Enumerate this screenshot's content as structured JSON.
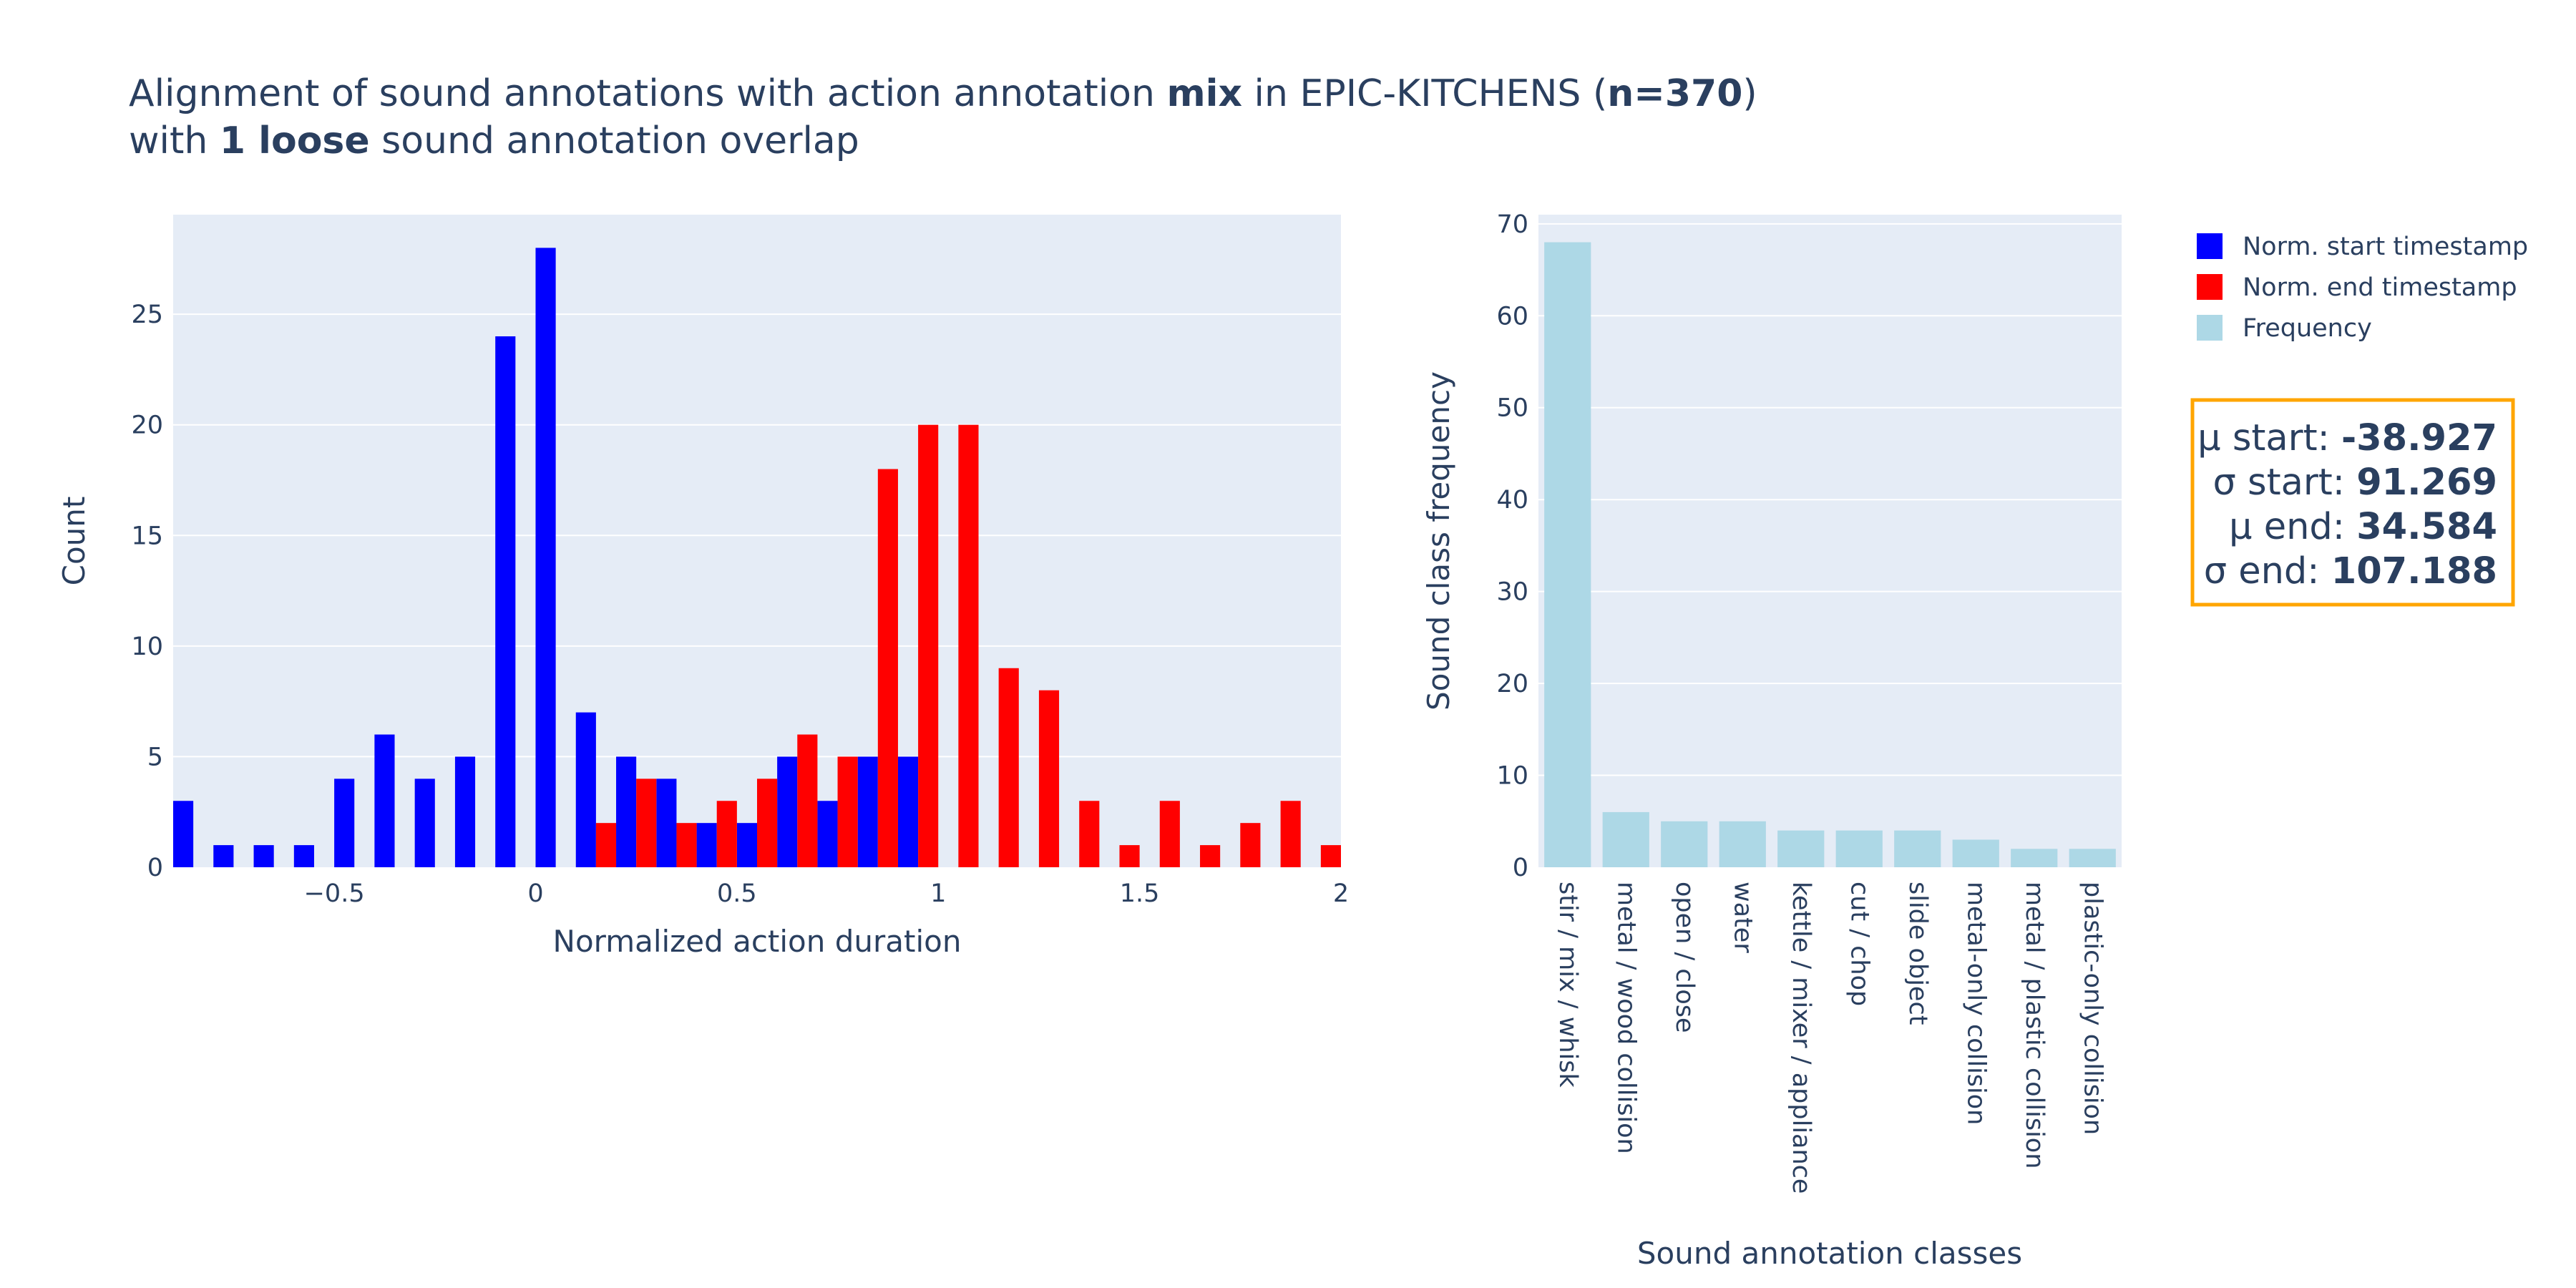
{
  "title": {
    "line1": {
      "part1": "Alignment of sound annotations with action annotation ",
      "bold1": "mix",
      "part2": " in EPIC-KITCHENS (",
      "bold2": "n=370",
      "part3": ")"
    },
    "line2": {
      "part1": "with ",
      "bold1": "1 loose",
      "part2": " sound annotation overlap"
    }
  },
  "colors": {
    "start": "#0000ff",
    "end": "#ff0000",
    "frequency": "#add8e6",
    "plot_bg": "#e5ecf6",
    "grid": "#ffffff",
    "text": "#2a3f5f",
    "stats_border": "#ffa500"
  },
  "legend": {
    "items": [
      {
        "label": "Norm. start timestamp",
        "color": "#0000ff"
      },
      {
        "label": "Norm. end timestamp",
        "color": "#ff0000"
      },
      {
        "label": "Frequency",
        "color": "#add8e6"
      }
    ]
  },
  "stats": [
    {
      "label": "μ start: ",
      "value": "-38.927"
    },
    {
      "label": "σ start: ",
      "value": "91.269"
    },
    {
      "label": "μ end: ",
      "value": "34.584"
    },
    {
      "label": "σ end: ",
      "value": "107.188"
    }
  ],
  "chart_data": [
    {
      "type": "bar",
      "subtype": "histogram",
      "xlabel": "Normalized action duration",
      "ylabel": "Count",
      "xlim": [
        -0.9,
        2.0
      ],
      "ylim": [
        0,
        29.5
      ],
      "xticks": [
        -0.5,
        0,
        0.5,
        1,
        1.5,
        2
      ],
      "xtick_labels": [
        "−0.5",
        "0",
        "0.5",
        "1",
        "1.5",
        "2"
      ],
      "yticks": [
        0,
        5,
        10,
        15,
        20,
        25
      ],
      "bin_width": 0.1,
      "grid": true,
      "series": [
        {
          "name": "Norm. start timestamp",
          "bin_starts": [
            -0.9,
            -0.8,
            -0.7,
            -0.6,
            -0.5,
            -0.4,
            -0.3,
            -0.2,
            -0.1,
            0.0,
            0.1,
            0.2,
            0.3,
            0.4,
            0.5,
            0.6,
            0.7,
            0.8,
            0.9
          ],
          "values": [
            3,
            1,
            1,
            1,
            4,
            6,
            4,
            5,
            24,
            28,
            7,
            5,
            4,
            2,
            2,
            5,
            3,
            5,
            5
          ]
        },
        {
          "name": "Norm. end timestamp",
          "bin_starts": [
            0.1,
            0.2,
            0.3,
            0.4,
            0.5,
            0.6,
            0.7,
            0.8,
            0.9,
            1.0,
            1.1,
            1.2,
            1.3,
            1.4,
            1.5,
            1.6,
            1.7,
            1.8,
            1.9
          ],
          "values": [
            2,
            4,
            2,
            3,
            4,
            6,
            5,
            18,
            20,
            20,
            9,
            8,
            3,
            1,
            3,
            1,
            2,
            3,
            1
          ]
        }
      ]
    },
    {
      "type": "bar",
      "xlabel": "Sound annotation classes",
      "ylabel": "Sound class frequency",
      "ylim": [
        0,
        71
      ],
      "yticks": [
        0,
        10,
        20,
        30,
        40,
        50,
        60,
        70
      ],
      "grid": true,
      "categories": [
        "stir / mix / whisk",
        "metal / wood collision",
        "open / close",
        "water",
        "kettle / mixer / appliance",
        "cut / chop",
        "slide object",
        "metal-only collision",
        "metal / plastic collision",
        "plastic-only collision"
      ],
      "series": [
        {
          "name": "Frequency",
          "values": [
            68,
            6,
            5,
            5,
            4,
            4,
            4,
            3,
            2,
            2
          ]
        }
      ]
    }
  ]
}
